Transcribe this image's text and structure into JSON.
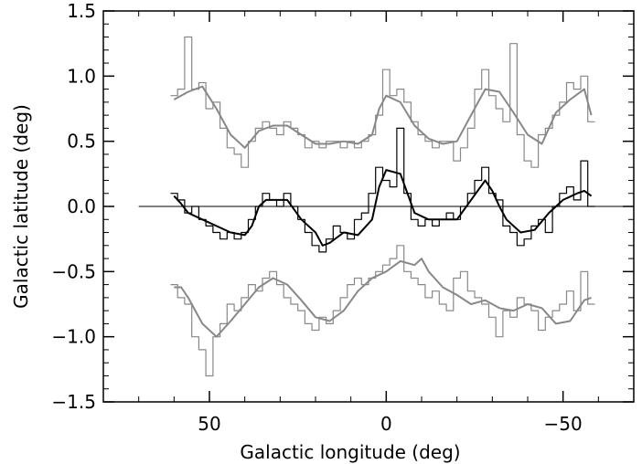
{
  "chart_data": {
    "type": "line",
    "title": "",
    "xlabel": "Galactic longitude (deg)",
    "ylabel": "Galactic latitude (deg)",
    "xlim": [
      80,
      -70
    ],
    "ylim": [
      -1.5,
      1.5
    ],
    "x_reversed": true,
    "grid": false,
    "legend": "none",
    "x_ticks": [
      50,
      0,
      -50
    ],
    "x_tick_labels": [
      "50",
      "0",
      "−50"
    ],
    "y_ticks": [
      1.5,
      1.0,
      0.5,
      0.0,
      -0.5,
      -1.0,
      -1.5
    ],
    "y_tick_labels": [
      "1.5",
      "1.0",
      "0.5",
      "0.0",
      "−0.5",
      "−1.0",
      "−1.5"
    ],
    "reference_line": {
      "y": 0.0,
      "x_range": [
        70,
        -70
      ],
      "color": "#000000"
    },
    "series": [
      {
        "style": "histogram",
        "color": "#888888",
        "x": [
          60,
          58,
          56,
          54,
          52,
          50,
          48,
          46,
          44,
          42,
          40,
          38,
          36,
          34,
          32,
          30,
          28,
          26,
          24,
          22,
          20,
          18,
          16,
          14,
          12,
          10,
          8,
          6,
          4,
          2,
          0,
          -2,
          -4,
          -6,
          -8,
          -10,
          -12,
          -14,
          -16,
          -18,
          -20,
          -22,
          -24,
          -26,
          -28,
          -30,
          -32,
          -34,
          -36,
          -38,
          -40,
          -42,
          -44,
          -46,
          -48,
          -50,
          -52,
          -54,
          -56,
          -58
        ],
        "y": [
          0.85,
          0.9,
          1.3,
          0.9,
          0.95,
          0.75,
          0.8,
          0.6,
          0.45,
          0.4,
          0.3,
          0.5,
          0.6,
          0.65,
          0.6,
          0.55,
          0.65,
          0.6,
          0.55,
          0.45,
          0.5,
          0.45,
          0.5,
          0.5,
          0.45,
          0.5,
          0.45,
          0.5,
          0.55,
          0.7,
          1.05,
          0.85,
          0.9,
          0.8,
          0.65,
          0.55,
          0.5,
          0.45,
          0.5,
          0.5,
          0.35,
          0.45,
          0.6,
          0.9,
          1.05,
          0.85,
          0.75,
          0.65,
          1.25,
          0.55,
          0.35,
          0.3,
          0.55,
          0.6,
          0.7,
          0.8,
          0.95,
          0.9,
          1.0,
          0.65
        ]
      },
      {
        "style": "smooth",
        "color": "#888888",
        "x": [
          60,
          56,
          52,
          48,
          44,
          40,
          36,
          32,
          28,
          24,
          20,
          16,
          12,
          8,
          4,
          2,
          0,
          -4,
          -8,
          -12,
          -16,
          -20,
          -24,
          -28,
          -32,
          -36,
          -40,
          -44,
          -48,
          -52,
          -56,
          -58
        ],
        "y": [
          0.82,
          0.88,
          0.92,
          0.75,
          0.55,
          0.45,
          0.58,
          0.62,
          0.62,
          0.55,
          0.48,
          0.48,
          0.5,
          0.48,
          0.55,
          0.75,
          0.85,
          0.8,
          0.62,
          0.52,
          0.48,
          0.5,
          0.7,
          0.9,
          0.88,
          0.72,
          0.55,
          0.48,
          0.72,
          0.82,
          0.9,
          0.7
        ]
      },
      {
        "style": "histogram",
        "color": "#000000",
        "x": [
          60,
          58,
          56,
          54,
          52,
          50,
          48,
          46,
          44,
          42,
          40,
          38,
          36,
          34,
          32,
          30,
          28,
          26,
          24,
          22,
          20,
          18,
          16,
          14,
          12,
          10,
          8,
          6,
          4,
          2,
          0,
          -2,
          -4,
          -6,
          -8,
          -10,
          -12,
          -14,
          -16,
          -18,
          -20,
          -22,
          -24,
          -26,
          -28,
          -30,
          -32,
          -34,
          -36,
          -38,
          -40,
          -42,
          -44,
          -46,
          -48,
          -50,
          -52,
          -54,
          -56,
          -58
        ],
        "y": [
          0.1,
          0.05,
          -0.05,
          0.0,
          -0.1,
          -0.15,
          -0.2,
          -0.25,
          -0.2,
          -0.25,
          -0.2,
          -0.1,
          0.0,
          0.1,
          0.05,
          0.0,
          0.1,
          0.0,
          -0.1,
          -0.2,
          -0.3,
          -0.35,
          -0.25,
          -0.15,
          -0.2,
          -0.25,
          -0.1,
          -0.05,
          0.1,
          0.3,
          0.2,
          0.15,
          0.6,
          0.1,
          -0.1,
          -0.15,
          -0.1,
          -0.15,
          -0.1,
          -0.05,
          -0.1,
          0.0,
          0.1,
          0.2,
          0.3,
          0.1,
          0.05,
          -0.15,
          -0.2,
          -0.3,
          -0.25,
          -0.15,
          -0.1,
          -0.2,
          0.0,
          0.1,
          0.15,
          0.05,
          0.35,
          0.0
        ]
      },
      {
        "style": "smooth",
        "color": "#000000",
        "x": [
          60,
          58,
          56,
          52,
          48,
          44,
          40,
          38,
          36,
          34,
          32,
          28,
          24,
          20,
          18,
          16,
          12,
          8,
          4,
          2,
          0,
          -4,
          -8,
          -12,
          -16,
          -20,
          -24,
          -28,
          -30,
          -32,
          -34,
          -38,
          -42,
          -46,
          -50,
          -54,
          -56,
          -58
        ],
        "y": [
          0.08,
          0.02,
          -0.05,
          -0.1,
          -0.15,
          -0.2,
          -0.22,
          -0.15,
          0.0,
          0.05,
          0.05,
          0.05,
          -0.1,
          -0.2,
          -0.3,
          -0.28,
          -0.2,
          -0.22,
          -0.1,
          0.15,
          0.28,
          0.25,
          -0.05,
          -0.1,
          -0.1,
          -0.1,
          0.05,
          0.2,
          0.12,
          0.0,
          -0.1,
          -0.2,
          -0.18,
          -0.05,
          0.05,
          0.1,
          0.12,
          0.08
        ]
      },
      {
        "style": "histogram",
        "color": "#888888",
        "x": [
          60,
          58,
          56,
          54,
          52,
          50,
          48,
          46,
          44,
          42,
          40,
          38,
          36,
          34,
          32,
          30,
          28,
          26,
          24,
          22,
          20,
          18,
          16,
          14,
          12,
          10,
          8,
          6,
          4,
          2,
          0,
          -2,
          -4,
          -6,
          -8,
          -10,
          -12,
          -14,
          -16,
          -18,
          -20,
          -22,
          -24,
          -26,
          -28,
          -30,
          -32,
          -34,
          -36,
          -38,
          -40,
          -42,
          -44,
          -46,
          -48,
          -50,
          -52,
          -54,
          -56,
          -58
        ],
        "y": [
          -0.6,
          -0.7,
          -0.75,
          -1.0,
          -1.1,
          -1.3,
          -1.0,
          -0.9,
          -0.75,
          -0.8,
          -0.7,
          -0.6,
          -0.65,
          -0.55,
          -0.5,
          -0.6,
          -0.7,
          -0.75,
          -0.8,
          -0.9,
          -0.95,
          -0.85,
          -0.9,
          -0.8,
          -0.7,
          -0.6,
          -0.55,
          -0.6,
          -0.55,
          -0.5,
          -0.45,
          -0.4,
          -0.3,
          -0.5,
          -0.55,
          -0.6,
          -0.7,
          -0.65,
          -0.75,
          -0.8,
          -0.55,
          -0.5,
          -0.65,
          -0.7,
          -0.75,
          -0.85,
          -1.0,
          -0.8,
          -0.85,
          -0.7,
          -0.75,
          -0.8,
          -0.95,
          -0.85,
          -0.8,
          -0.75,
          -0.65,
          -0.8,
          -0.5,
          -0.75
        ]
      },
      {
        "style": "smooth",
        "color": "#888888",
        "x": [
          60,
          58,
          56,
          52,
          48,
          44,
          40,
          36,
          32,
          28,
          24,
          20,
          16,
          12,
          8,
          4,
          0,
          -4,
          -8,
          -10,
          -12,
          -16,
          -20,
          -24,
          -28,
          -32,
          -36,
          -40,
          -44,
          -48,
          -52,
          -56,
          -58
        ],
        "y": [
          -0.62,
          -0.62,
          -0.7,
          -0.9,
          -1.0,
          -0.88,
          -0.75,
          -0.62,
          -0.55,
          -0.6,
          -0.72,
          -0.85,
          -0.88,
          -0.8,
          -0.65,
          -0.55,
          -0.5,
          -0.42,
          -0.45,
          -0.4,
          -0.5,
          -0.62,
          -0.68,
          -0.75,
          -0.72,
          -0.78,
          -0.8,
          -0.75,
          -0.78,
          -0.9,
          -0.88,
          -0.72,
          -0.7
        ]
      }
    ]
  }
}
